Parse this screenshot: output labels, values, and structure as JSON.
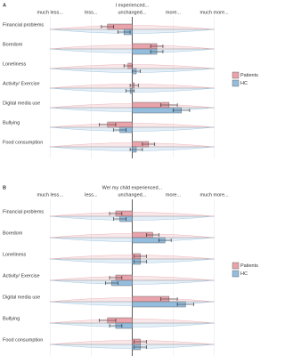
{
  "chart_data": [
    {
      "type": "bar",
      "panel": "A",
      "title": "I experienced...",
      "categories": [
        "Financial problems",
        "Boredom",
        "Loneliness",
        "Activity/ Exercise",
        "Digital media use",
        "Bullying",
        "Food consumption"
      ],
      "series": [
        {
          "name": "Patients",
          "color": "#e8a3ab",
          "values": [
            -0.6,
            0.6,
            -0.1,
            0.05,
            0.9,
            -0.6,
            0.4
          ],
          "errors": [
            0.15,
            0.15,
            0.1,
            0.1,
            0.2,
            0.2,
            0.15
          ]
        },
        {
          "name": "HC",
          "color": "#94bcdc",
          "values": [
            -0.2,
            0.6,
            0.1,
            -0.05,
            1.2,
            -0.3,
            0.1
          ],
          "errors": [
            0.15,
            0.15,
            0.1,
            0.1,
            0.2,
            0.15,
            0.15
          ]
        }
      ],
      "xlim": [
        -2.2,
        2.4
      ],
      "xticks": [
        {
          "value": -2,
          "label": "much less..."
        },
        {
          "value": -1,
          "label": "less..."
        },
        {
          "value": 0,
          "label": "unchanged..."
        },
        {
          "value": 1,
          "label": "more..."
        },
        {
          "value": 2,
          "label": "much more..."
        }
      ],
      "grid": true,
      "legend": "right"
    },
    {
      "type": "bar",
      "panel": "B",
      "title": "We/ my child experienced...",
      "categories": [
        "Financial problems",
        "Boredom",
        "Loneliness",
        "Activity/ Exercise",
        "Digital media use",
        "Bullying",
        "Food consumption"
      ],
      "series": [
        {
          "name": "Patients",
          "color": "#e8a3ab",
          "values": [
            -0.4,
            0.5,
            0.2,
            -0.4,
            0.9,
            -0.6,
            0.2
          ],
          "errors": [
            0.15,
            0.15,
            0.15,
            0.15,
            0.2,
            0.2,
            0.15
          ]
        },
        {
          "name": "HC",
          "color": "#94bcdc",
          "values": [
            -0.3,
            0.8,
            0.2,
            -0.5,
            1.3,
            -0.4,
            0.2
          ],
          "errors": [
            0.15,
            0.15,
            0.15,
            0.15,
            0.2,
            0.15,
            0.15
          ]
        }
      ],
      "xlim": [
        -2.2,
        2.4
      ],
      "xticks": [
        {
          "value": -2,
          "label": "much less..."
        },
        {
          "value": -1,
          "label": "less..."
        },
        {
          "value": 0,
          "label": "unchanged..."
        },
        {
          "value": 1,
          "label": "more..."
        },
        {
          "value": 2,
          "label": "much more..."
        }
      ],
      "grid": true,
      "legend": "right"
    }
  ]
}
